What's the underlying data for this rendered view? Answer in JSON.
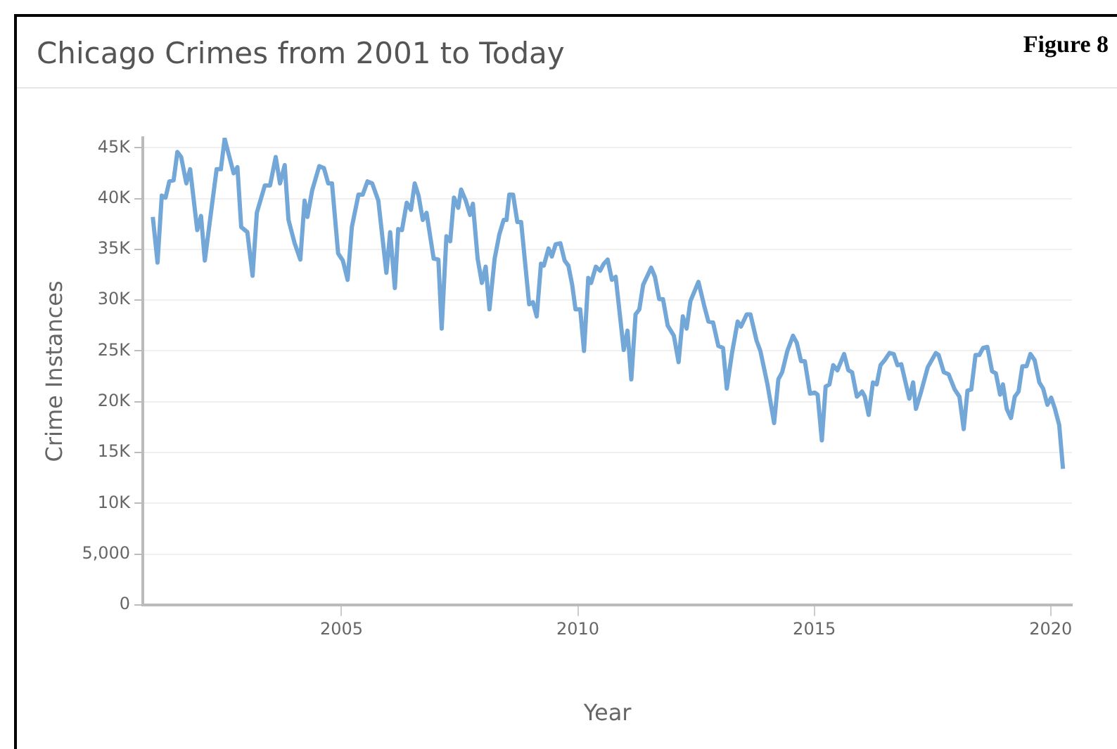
{
  "chart_data": {
    "type": "line",
    "title": "Chicago Crimes from 2001 to Today",
    "xlabel": "Year",
    "ylabel": "Crime Instances",
    "annotations": [
      "Figure 8"
    ],
    "xlim": [
      2000.8,
      2020.45
    ],
    "xticks": [
      2005,
      2010,
      2015,
      2020
    ],
    "ylim": [
      0,
      46000
    ],
    "yticks": [
      {
        "value": 0,
        "label": "0"
      },
      {
        "value": 5000,
        "label": "5,000"
      },
      {
        "value": 10000,
        "label": "10K"
      },
      {
        "value": 15000,
        "label": "15K"
      },
      {
        "value": 20000,
        "label": "20K"
      },
      {
        "value": 25000,
        "label": "25K"
      },
      {
        "value": 30000,
        "label": "30K"
      },
      {
        "value": 35000,
        "label": "35K"
      },
      {
        "value": 40000,
        "label": "40K"
      },
      {
        "value": 45000,
        "label": "45K"
      }
    ],
    "grid": "y",
    "marker": "none",
    "line_style": "solid",
    "series": [
      {
        "color": "#72a7d8",
        "x": [
          2001.01,
          2001.11,
          2001.2,
          2001.28,
          2001.36,
          2001.45,
          2001.53,
          2001.61,
          2001.72,
          2001.8,
          2001.95,
          2002.03,
          2002.11,
          2002.24,
          2002.36,
          2002.45,
          2002.53,
          2002.72,
          2002.8,
          2002.88,
          2003.01,
          2003.12,
          2003.21,
          2003.38,
          2003.49,
          2003.61,
          2003.7,
          2003.8,
          2003.88,
          2004.01,
          2004.13,
          2004.22,
          2004.28,
          2004.38,
          2004.53,
          2004.63,
          2004.72,
          2004.8,
          2004.93,
          2005.03,
          2005.13,
          2005.22,
          2005.36,
          2005.45,
          2005.55,
          2005.65,
          2005.78,
          2005.95,
          2006.03,
          2006.13,
          2006.2,
          2006.28,
          2006.38,
          2006.47,
          2006.55,
          2006.63,
          2006.72,
          2006.8,
          2006.95,
          2007.05,
          2007.12,
          2007.22,
          2007.3,
          2007.38,
          2007.47,
          2007.53,
          2007.63,
          2007.72,
          2007.78,
          2007.88,
          2007.97,
          2008.05,
          2008.13,
          2008.24,
          2008.34,
          2008.43,
          2008.49,
          2008.55,
          2008.63,
          2008.72,
          2008.8,
          2008.97,
          2009.05,
          2009.13,
          2009.22,
          2009.28,
          2009.38,
          2009.45,
          2009.53,
          2009.63,
          2009.72,
          2009.8,
          2009.88,
          2009.95,
          2010.05,
          2010.13,
          2010.22,
          2010.28,
          2010.38,
          2010.47,
          2010.55,
          2010.63,
          2010.72,
          2010.8,
          2010.97,
          2011.05,
          2011.13,
          2011.22,
          2011.3,
          2011.38,
          2011.55,
          2011.63,
          2011.72,
          2011.8,
          2011.9,
          2012.03,
          2012.13,
          2012.22,
          2012.3,
          2012.38,
          2012.55,
          2012.68,
          2012.76,
          2012.86,
          2012.97,
          2013.07,
          2013.15,
          2013.26,
          2013.38,
          2013.45,
          2013.57,
          2013.65,
          2013.78,
          2013.86,
          2014.01,
          2014.15,
          2014.24,
          2014.32,
          2014.43,
          2014.55,
          2014.63,
          2014.72,
          2014.8,
          2014.91,
          2015.01,
          2015.07,
          2015.16,
          2015.24,
          2015.32,
          2015.4,
          2015.49,
          2015.63,
          2015.72,
          2015.8,
          2015.9,
          2016.01,
          2016.07,
          2016.15,
          2016.24,
          2016.32,
          2016.4,
          2016.49,
          2016.59,
          2016.68,
          2016.76,
          2016.84,
          2017.01,
          2017.09,
          2017.15,
          2017.26,
          2017.4,
          2017.57,
          2017.63,
          2017.74,
          2017.84,
          2017.97,
          2018.07,
          2018.16,
          2018.24,
          2018.32,
          2018.41,
          2018.49,
          2018.57,
          2018.66,
          2018.76,
          2018.84,
          2018.93,
          2018.99,
          2019.07,
          2019.16,
          2019.24,
          2019.32,
          2019.4,
          2019.49,
          2019.57,
          2019.66,
          2019.76,
          2019.84,
          2019.93,
          2020.01,
          2020.09,
          2020.18,
          2020.26
        ],
        "values": [
          38200,
          33700,
          40300,
          40100,
          41700,
          41800,
          44600,
          44100,
          41500,
          42900,
          36900,
          38300,
          33900,
          38600,
          42900,
          42900,
          45900,
          42500,
          43100,
          37200,
          36700,
          32400,
          38600,
          41300,
          41300,
          44100,
          41500,
          43300,
          37900,
          35600,
          34000,
          39800,
          38200,
          40800,
          43200,
          43000,
          41500,
          41500,
          34600,
          33900,
          32000,
          37200,
          40400,
          40400,
          41700,
          41500,
          39800,
          32700,
          36700,
          31200,
          37000,
          36900,
          39600,
          38900,
          41500,
          40300,
          37900,
          38600,
          34100,
          34000,
          27200,
          36300,
          35800,
          40100,
          39100,
          40900,
          39800,
          38400,
          39500,
          34100,
          31700,
          33300,
          29100,
          34100,
          36500,
          37900,
          37900,
          40400,
          40400,
          37700,
          37700,
          29600,
          29800,
          28400,
          33600,
          33400,
          35100,
          34300,
          35500,
          35600,
          33900,
          33400,
          31500,
          29100,
          29100,
          25000,
          32200,
          31700,
          33300,
          32900,
          33600,
          34000,
          32000,
          32300,
          25100,
          27000,
          22200,
          28600,
          29100,
          31500,
          33200,
          32300,
          30100,
          30100,
          27500,
          26500,
          23900,
          28400,
          27200,
          29900,
          31800,
          29300,
          27900,
          27800,
          25500,
          25300,
          21300,
          24800,
          27900,
          27400,
          28600,
          28600,
          26000,
          25000,
          21700,
          17900,
          22200,
          22900,
          25000,
          26500,
          25800,
          24000,
          24000,
          20800,
          20900,
          20700,
          16200,
          21500,
          21700,
          23600,
          23100,
          24700,
          23100,
          22900,
          20500,
          21000,
          20500,
          18700,
          21900,
          21700,
          23600,
          24100,
          24800,
          24700,
          23600,
          23700,
          20300,
          21900,
          19300,
          21000,
          23400,
          24800,
          24600,
          22900,
          22700,
          21200,
          20500,
          17300,
          21100,
          21200,
          24600,
          24600,
          25300,
          25400,
          23000,
          22800,
          20700,
          21700,
          19300,
          18400,
          20500,
          21000,
          23500,
          23500,
          24700,
          24100,
          21900,
          21300,
          19700,
          20400,
          19300,
          17700,
          13400
        ]
      }
    ]
  }
}
